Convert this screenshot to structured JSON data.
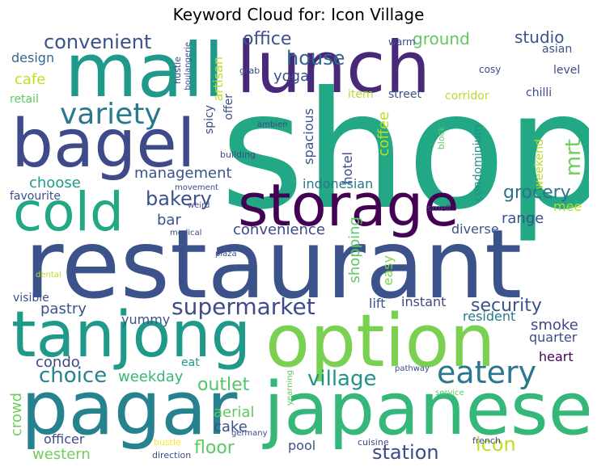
{
  "title": "Keyword Cloud for: Icon Village",
  "words": [
    {
      "text": "shop",
      "color": "#22a884"
    },
    {
      "text": "restaurant",
      "color": "#3b528b"
    },
    {
      "text": "lunch",
      "color": "#482878"
    },
    {
      "text": "mall",
      "color": "#1f9a8a"
    },
    {
      "text": "bagel",
      "color": "#3e4a89"
    },
    {
      "text": "storage",
      "color": "#440154"
    },
    {
      "text": "cold",
      "color": "#22a884"
    },
    {
      "text": "option",
      "color": "#7ad151"
    },
    {
      "text": "tanjong",
      "color": "#1f9a8a"
    },
    {
      "text": "pagar",
      "color": "#26828e"
    },
    {
      "text": "japanese",
      "color": "#35b779"
    },
    {
      "text": "supermarket",
      "color": "#3e4a89"
    },
    {
      "text": "eatery",
      "color": "#2a788e"
    },
    {
      "text": "village",
      "color": "#21918c"
    },
    {
      "text": "variety",
      "color": "#2a788e"
    },
    {
      "text": "house",
      "color": "#31688e"
    },
    {
      "text": "office",
      "color": "#3b528b"
    },
    {
      "text": "convenient",
      "color": "#3b528b"
    },
    {
      "text": "bakery",
      "color": "#3b528b"
    },
    {
      "text": "grocery",
      "color": "#2c728e"
    },
    {
      "text": "choice",
      "color": "#26828e"
    },
    {
      "text": "security",
      "color": "#3b528b"
    },
    {
      "text": "icon",
      "color": "#bddf26"
    },
    {
      "text": "station",
      "color": "#3e4a89"
    },
    {
      "text": "outlet",
      "color": "#52c569"
    },
    {
      "text": "mrt",
      "color": "#6ece58"
    },
    {
      "text": "ground",
      "color": "#5ec962"
    },
    {
      "text": "studio",
      "color": "#3b528b"
    },
    {
      "text": "floor",
      "color": "#5ec962"
    },
    {
      "text": "yoga",
      "color": "#3e4a89"
    },
    {
      "text": "management",
      "color": "#3b528b"
    },
    {
      "text": "convenience",
      "color": "#3e4a89"
    },
    {
      "text": "range",
      "color": "#3b528b"
    },
    {
      "text": "bar",
      "color": "#3b528b"
    },
    {
      "text": "choose",
      "color": "#1f9a8a"
    },
    {
      "text": "cafe",
      "color": "#bddf26"
    },
    {
      "text": "pastry",
      "color": "#3b528b"
    },
    {
      "text": "weekday",
      "color": "#35b779"
    },
    {
      "text": "smoke",
      "color": "#3e4a89"
    },
    {
      "text": "condo",
      "color": "#3e4a89"
    },
    {
      "text": "crowd",
      "color": "#6ece58"
    },
    {
      "text": "western",
      "color": "#6ece58"
    },
    {
      "text": "cake",
      "color": "#3b528b"
    },
    {
      "text": "aerial",
      "color": "#5ec962"
    },
    {
      "text": "officer",
      "color": "#3e4a89"
    },
    {
      "text": "pool",
      "color": "#3b528b"
    },
    {
      "text": "shopping",
      "color": "#5ec962"
    },
    {
      "text": "coffee",
      "color": "#b5de2b"
    },
    {
      "text": "hotel",
      "color": "#3e4a89"
    },
    {
      "text": "spacious",
      "color": "#3b528b"
    },
    {
      "text": "indonesian",
      "color": "#2a788e"
    },
    {
      "text": "condominium",
      "color": "#21918c"
    },
    {
      "text": "town",
      "color": "#22a884"
    },
    {
      "text": "weekend",
      "color": "#b5de2b"
    },
    {
      "text": "easy",
      "color": "#7ad151"
    },
    {
      "text": "diverse",
      "color": "#3b528b"
    },
    {
      "text": "mee",
      "color": "#b5de2b"
    },
    {
      "text": "instant",
      "color": "#3e4a89"
    },
    {
      "text": "lift",
      "color": "#3b528b"
    },
    {
      "text": "resident",
      "color": "#2a788e"
    },
    {
      "text": "quarter",
      "color": "#3e4a89"
    },
    {
      "text": "heart",
      "color": "#440154"
    },
    {
      "text": "eat",
      "color": "#1f9a8a"
    },
    {
      "text": "yummy",
      "color": "#3b528b"
    },
    {
      "text": "visible",
      "color": "#3b528b"
    },
    {
      "text": "design",
      "color": "#31688e"
    },
    {
      "text": "retail",
      "color": "#5ec962"
    },
    {
      "text": "favourite",
      "color": "#3b528b"
    },
    {
      "text": "artisan",
      "color": "#bddf26"
    },
    {
      "text": "spicy",
      "color": "#3e4a89"
    },
    {
      "text": "offer",
      "color": "#3b528b"
    },
    {
      "text": "item",
      "color": "#b5de2b"
    },
    {
      "text": "street",
      "color": "#3b528b"
    },
    {
      "text": "corridor",
      "color": "#b5de2b"
    },
    {
      "text": "chilli",
      "color": "#3e4a89"
    },
    {
      "text": "level",
      "color": "#3e4a89"
    },
    {
      "text": "asian",
      "color": "#3b528b"
    },
    {
      "text": "cosy",
      "color": "#3e4a89"
    },
    {
      "text": "warm",
      "color": "#3e4a89"
    },
    {
      "text": "hustle",
      "color": "#3e4a89"
    },
    {
      "text": "boulangerie",
      "color": "#3e4a89"
    },
    {
      "text": "grab",
      "color": "#3e4a89"
    },
    {
      "text": "ambien",
      "color": "#3e4a89"
    },
    {
      "text": "building",
      "color": "#3e4a89"
    },
    {
      "text": "block",
      "color": "#5ec962"
    },
    {
      "text": "smell",
      "color": "#3e4a89"
    },
    {
      "text": "movement",
      "color": "#3e4a89"
    },
    {
      "text": "weird",
      "color": "#3e4a89"
    },
    {
      "text": "medical",
      "color": "#3e4a89"
    },
    {
      "text": "european",
      "color": "#3e4a89"
    },
    {
      "text": "plaza",
      "color": "#3e4a89"
    },
    {
      "text": "dental",
      "color": "#bddf26"
    },
    {
      "text": "pathway",
      "color": "#3e4a89"
    },
    {
      "text": "service",
      "color": "#5ec962"
    },
    {
      "text": "yearning",
      "color": "#5ec962"
    },
    {
      "text": "germany",
      "color": "#3e4a89"
    },
    {
      "text": "bustle",
      "color": "#fde725"
    },
    {
      "text": "direction",
      "color": "#3e4a89"
    },
    {
      "text": "cuisine",
      "color": "#3e4a89"
    },
    {
      "text": "french",
      "color": "#3e4a89"
    }
  ]
}
